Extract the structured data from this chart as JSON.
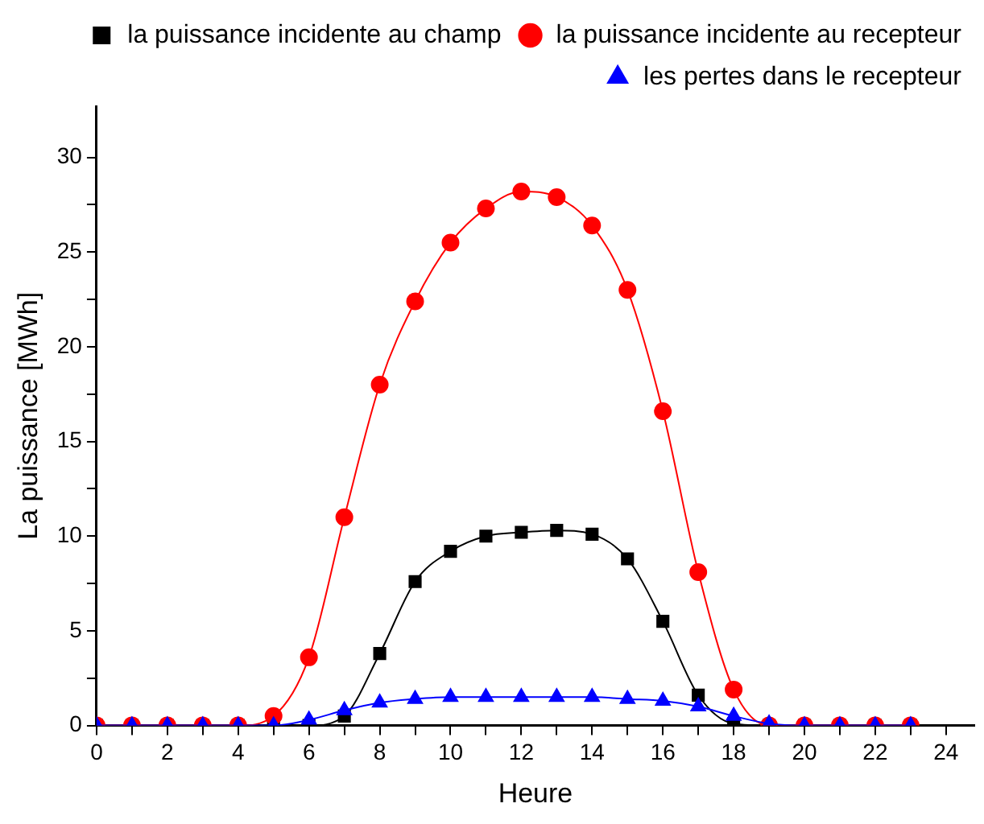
{
  "chart_data": {
    "type": "line",
    "xlabel": "Heure",
    "ylabel": "La puissance [MWh]",
    "x": [
      0,
      1,
      2,
      3,
      4,
      5,
      6,
      7,
      8,
      9,
      10,
      11,
      12,
      13,
      14,
      15,
      16,
      17,
      18,
      19,
      20,
      21,
      22,
      23
    ],
    "series": [
      {
        "name": "la puissance incidente au champ",
        "color": "#000000",
        "marker": "square",
        "values": [
          0,
          0,
          0,
          0,
          0,
          0,
          0,
          0.5,
          3.8,
          7.6,
          9.2,
          10.0,
          10.2,
          10.3,
          10.1,
          8.8,
          5.5,
          1.6,
          0.1,
          0,
          0,
          0,
          0,
          0
        ]
      },
      {
        "name": "la puissance incidente au recepteur",
        "color": "#ff0000",
        "marker": "circle",
        "values": [
          0,
          0,
          0,
          0,
          0,
          0.5,
          3.6,
          11.0,
          18.0,
          22.4,
          25.5,
          27.3,
          28.2,
          27.9,
          26.4,
          23.0,
          16.6,
          8.1,
          1.9,
          0,
          0,
          0,
          0,
          0
        ]
      },
      {
        "name": "les pertes dans le recepteur",
        "color": "#0000ff",
        "marker": "triangle",
        "values": [
          0,
          0,
          0,
          0,
          0,
          0,
          0.3,
          0.8,
          1.2,
          1.4,
          1.5,
          1.5,
          1.5,
          1.5,
          1.5,
          1.4,
          1.3,
          1.0,
          0.5,
          0.1,
          0,
          0,
          0,
          0
        ]
      }
    ],
    "xlim": [
      0,
      24.8
    ],
    "ylim": [
      0,
      32.7
    ],
    "xticks": [
      0,
      {
        "value": 1,
        "label": null
      },
      2,
      {
        "value": 3,
        "label": null
      },
      4,
      {
        "value": 5,
        "label": null
      },
      6,
      {
        "value": 7,
        "label": null
      },
      8,
      {
        "value": 9,
        "label": null
      },
      10,
      {
        "value": 11,
        "label": null
      },
      12,
      {
        "value": 13,
        "label": null
      },
      14,
      {
        "value": 15,
        "label": null
      },
      16,
      {
        "value": 17,
        "label": null
      },
      18,
      {
        "value": 19,
        "label": null
      },
      20,
      {
        "value": 21,
        "label": null
      },
      22,
      {
        "value": 23,
        "label": null
      },
      24
    ],
    "yticks": [
      0,
      {
        "value": 2.5,
        "label": null
      },
      5,
      {
        "value": 7.5,
        "label": null
      },
      10,
      {
        "value": 12.5,
        "label": null
      },
      15,
      {
        "value": 17.5,
        "label": null
      },
      20,
      {
        "value": 22.5,
        "label": null
      },
      25,
      {
        "value": 27.5,
        "label": null
      },
      30
    ],
    "grid": false,
    "legend": "top right",
    "line_style": "solid"
  }
}
